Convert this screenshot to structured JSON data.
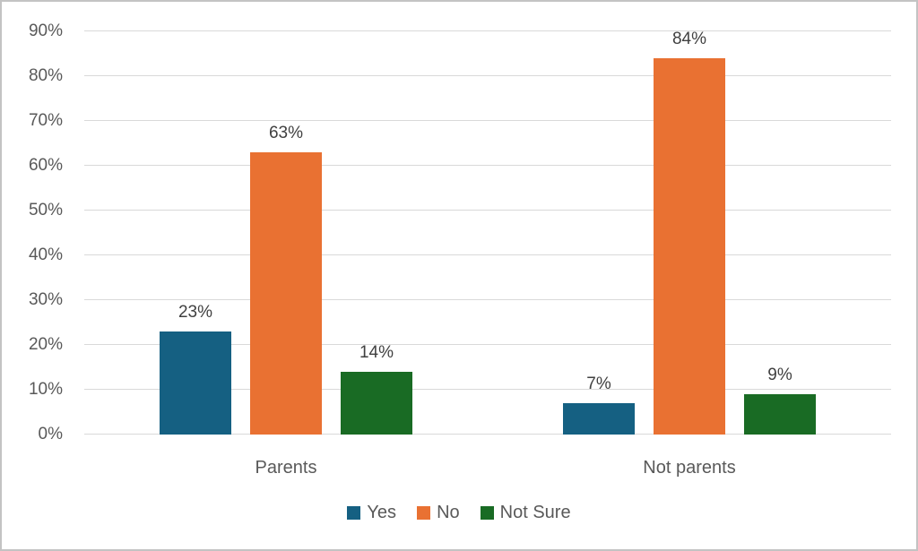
{
  "chart_data": {
    "type": "bar",
    "title": "",
    "xlabel": "",
    "ylabel": "",
    "categories": [
      "Parents",
      "Not parents"
    ],
    "series": [
      {
        "name": "Yes",
        "color": "#156082",
        "values": [
          23,
          7
        ]
      },
      {
        "name": "No",
        "color": "#E97132",
        "values": [
          63,
          84
        ]
      },
      {
        "name": "Not Sure",
        "color": "#196B24",
        "values": [
          14,
          9
        ]
      }
    ],
    "value_suffix": "%",
    "ylim": [
      0,
      90
    ],
    "ytick_step": 10,
    "ytick_labels": [
      "0%",
      "10%",
      "20%",
      "30%",
      "40%",
      "50%",
      "60%",
      "70%",
      "80%",
      "90%"
    ],
    "data_labels": [
      [
        "23%",
        "63%",
        "14%"
      ],
      [
        "7%",
        "84%",
        "9%"
      ]
    ],
    "grid": true,
    "legend_position": "bottom"
  },
  "colors": {
    "grid": "#D9D9D9",
    "axis_text": "#595959",
    "data_label_text": "#404040",
    "frame_border": "#C3C3C3",
    "background": "#FFFFFF"
  }
}
